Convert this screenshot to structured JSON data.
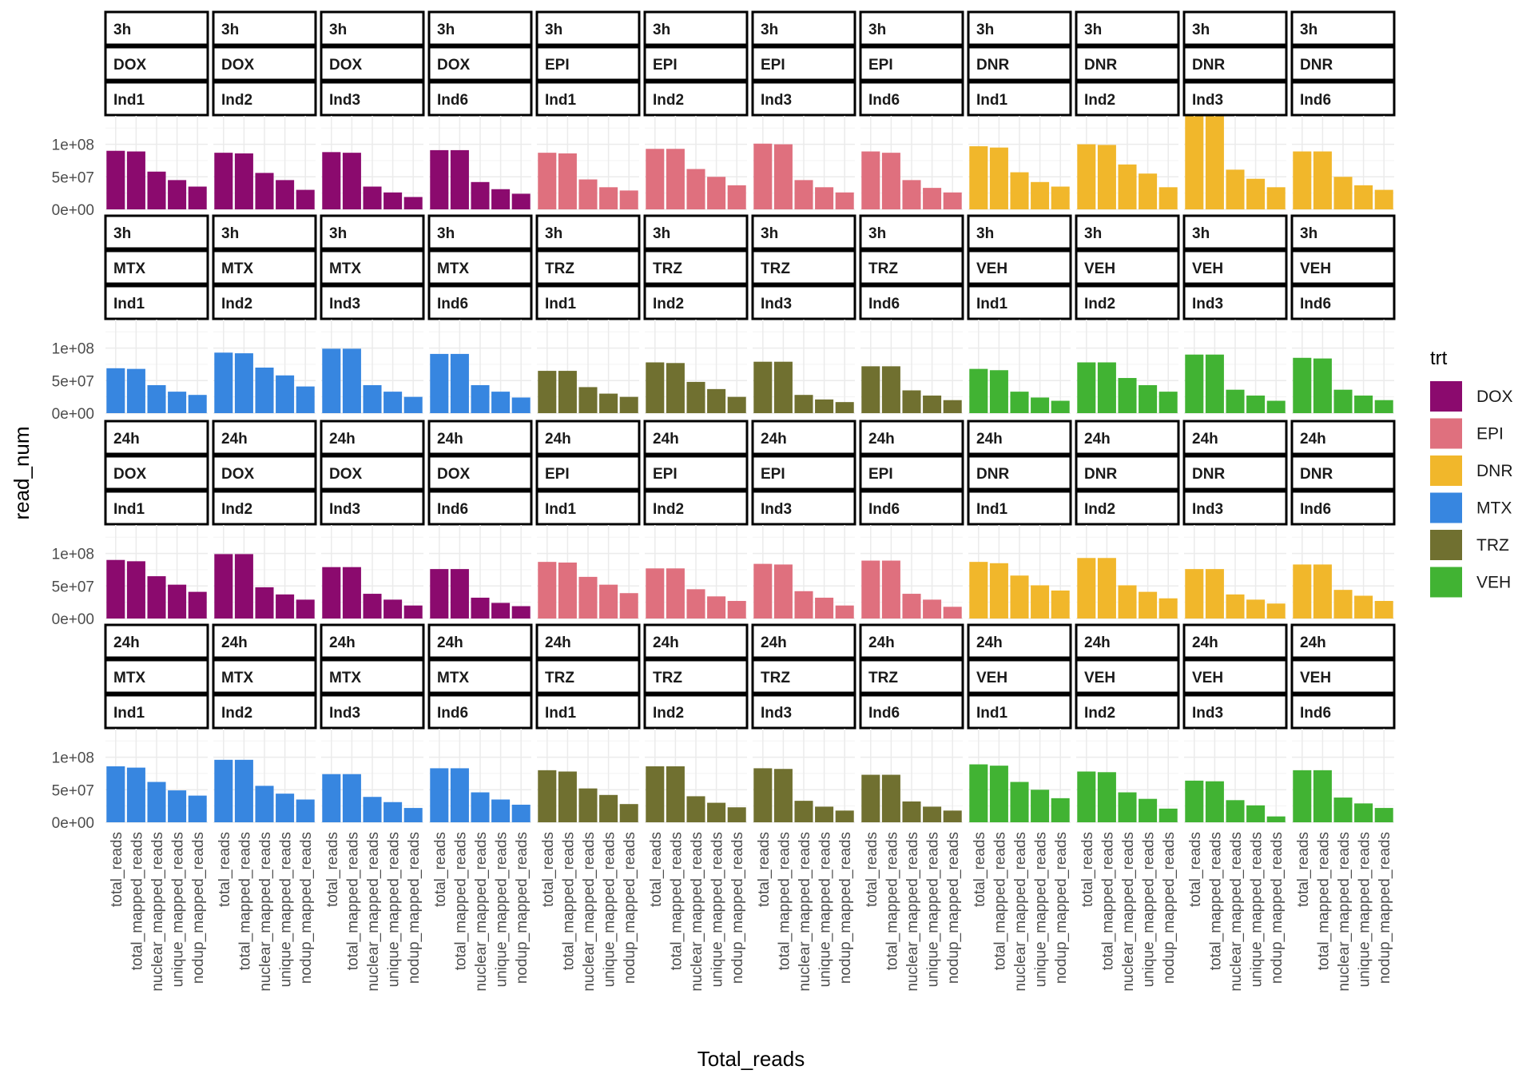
{
  "chart_data": {
    "type": "bar",
    "facet_layout": "time ~ trt ~ ind (faceted bar grid, 4 panel rows x 12 panel columns)",
    "xlabel": "Total_reads",
    "ylabel": "read_num",
    "y_ticks": [
      "0e+00",
      "5e+07",
      "1e+08"
    ],
    "ylim": [
      0,
      140000000
    ],
    "categories": [
      "total_reads",
      "total_mapped_reads",
      "nuclear_mapped_reads",
      "unique_mapped_reads",
      "nodup_mapped_reads"
    ],
    "legend": {
      "title": "trt",
      "position": "right",
      "items": [
        {
          "label": "DOX",
          "color": "#8B0A6E"
        },
        {
          "label": "EPI",
          "color": "#DF707E"
        },
        {
          "label": "DNR",
          "color": "#F1B72B"
        },
        {
          "label": "MTX",
          "color": "#3786E0"
        },
        {
          "label": "TRZ",
          "color": "#707030"
        },
        {
          "label": "VEH",
          "color": "#41B333"
        }
      ]
    },
    "panel_rows": [
      {
        "time": "3h",
        "panels": [
          {
            "time": "3h",
            "trt": "DOX",
            "ind": "Ind1",
            "values": [
              90000000,
              89000000,
              58000000,
              45000000,
              35000000
            ]
          },
          {
            "time": "3h",
            "trt": "DOX",
            "ind": "Ind2",
            "values": [
              87000000,
              86000000,
              56000000,
              45000000,
              30000000
            ]
          },
          {
            "time": "3h",
            "trt": "DOX",
            "ind": "Ind3",
            "values": [
              88000000,
              87000000,
              35000000,
              26000000,
              19000000
            ]
          },
          {
            "time": "3h",
            "trt": "DOX",
            "ind": "Ind6",
            "values": [
              91000000,
              91000000,
              42000000,
              31000000,
              24000000
            ]
          },
          {
            "time": "3h",
            "trt": "EPI",
            "ind": "Ind1",
            "values": [
              87000000,
              86000000,
              46000000,
              34000000,
              29000000
            ]
          },
          {
            "time": "3h",
            "trt": "EPI",
            "ind": "Ind2",
            "values": [
              93000000,
              93000000,
              62000000,
              50000000,
              37000000
            ]
          },
          {
            "time": "3h",
            "trt": "EPI",
            "ind": "Ind3",
            "values": [
              101000000,
              100000000,
              45000000,
              34000000,
              26000000
            ]
          },
          {
            "time": "3h",
            "trt": "EPI",
            "ind": "Ind6",
            "values": [
              89000000,
              87000000,
              45000000,
              33000000,
              26000000
            ]
          },
          {
            "time": "3h",
            "trt": "DNR",
            "ind": "Ind1",
            "values": [
              97000000,
              95000000,
              57000000,
              42000000,
              35000000
            ]
          },
          {
            "time": "3h",
            "trt": "DNR",
            "ind": "Ind2",
            "values": [
              100000000,
              99000000,
              69000000,
              55000000,
              34000000
            ]
          },
          {
            "time": "3h",
            "trt": "DNR",
            "ind": "Ind3",
            "values": [
              143000000,
              143000000,
              61000000,
              47000000,
              34000000
            ]
          },
          {
            "time": "3h",
            "trt": "DNR",
            "ind": "Ind6",
            "values": [
              89000000,
              89000000,
              50000000,
              37000000,
              30000000
            ]
          }
        ]
      },
      {
        "time": "3h",
        "panels": [
          {
            "time": "3h",
            "trt": "MTX",
            "ind": "Ind1",
            "values": [
              69000000,
              68000000,
              43000000,
              33000000,
              28000000
            ]
          },
          {
            "time": "3h",
            "trt": "MTX",
            "ind": "Ind2",
            "values": [
              93000000,
              92000000,
              70000000,
              58000000,
              41000000
            ]
          },
          {
            "time": "3h",
            "trt": "MTX",
            "ind": "Ind3",
            "values": [
              99000000,
              99000000,
              43000000,
              33000000,
              25000000
            ]
          },
          {
            "time": "3h",
            "trt": "MTX",
            "ind": "Ind6",
            "values": [
              91000000,
              91000000,
              43000000,
              33000000,
              24000000
            ]
          },
          {
            "time": "3h",
            "trt": "TRZ",
            "ind": "Ind1",
            "values": [
              65000000,
              65000000,
              40000000,
              30000000,
              25000000
            ]
          },
          {
            "time": "3h",
            "trt": "TRZ",
            "ind": "Ind2",
            "values": [
              78000000,
              77000000,
              48000000,
              37000000,
              25000000
            ]
          },
          {
            "time": "3h",
            "trt": "TRZ",
            "ind": "Ind3",
            "values": [
              79000000,
              79000000,
              28000000,
              21000000,
              17000000
            ]
          },
          {
            "time": "3h",
            "trt": "TRZ",
            "ind": "Ind6",
            "values": [
              72000000,
              72000000,
              35000000,
              27000000,
              20000000
            ]
          },
          {
            "time": "3h",
            "trt": "VEH",
            "ind": "Ind1",
            "values": [
              68000000,
              66000000,
              33000000,
              24000000,
              19000000
            ]
          },
          {
            "time": "3h",
            "trt": "VEH",
            "ind": "Ind2",
            "values": [
              78000000,
              78000000,
              54000000,
              43000000,
              33000000
            ]
          },
          {
            "time": "3h",
            "trt": "VEH",
            "ind": "Ind3",
            "values": [
              90000000,
              90000000,
              36000000,
              27000000,
              19000000
            ]
          },
          {
            "time": "3h",
            "trt": "VEH",
            "ind": "Ind6",
            "values": [
              85000000,
              84000000,
              36000000,
              27000000,
              20000000
            ]
          }
        ]
      },
      {
        "time": "24h",
        "panels": [
          {
            "time": "24h",
            "trt": "DOX",
            "ind": "Ind1",
            "values": [
              90000000,
              88000000,
              65000000,
              52000000,
              41000000
            ]
          },
          {
            "time": "24h",
            "trt": "DOX",
            "ind": "Ind2",
            "values": [
              99000000,
              99000000,
              48000000,
              37000000,
              29000000
            ]
          },
          {
            "time": "24h",
            "trt": "DOX",
            "ind": "Ind3",
            "values": [
              79000000,
              79000000,
              38000000,
              29000000,
              20000000
            ]
          },
          {
            "time": "24h",
            "trt": "DOX",
            "ind": "Ind6",
            "values": [
              76000000,
              76000000,
              32000000,
              24000000,
              19000000
            ]
          },
          {
            "time": "24h",
            "trt": "EPI",
            "ind": "Ind1",
            "values": [
              87000000,
              86000000,
              64000000,
              52000000,
              39000000
            ]
          },
          {
            "time": "24h",
            "trt": "EPI",
            "ind": "Ind2",
            "values": [
              77000000,
              77000000,
              45000000,
              34000000,
              27000000
            ]
          },
          {
            "time": "24h",
            "trt": "EPI",
            "ind": "Ind3",
            "values": [
              84000000,
              83000000,
              42000000,
              32000000,
              20000000
            ]
          },
          {
            "time": "24h",
            "trt": "EPI",
            "ind": "Ind6",
            "values": [
              89000000,
              89000000,
              38000000,
              29000000,
              18000000
            ]
          },
          {
            "time": "24h",
            "trt": "DNR",
            "ind": "Ind1",
            "values": [
              87000000,
              85000000,
              66000000,
              51000000,
              43000000
            ]
          },
          {
            "time": "24h",
            "trt": "DNR",
            "ind": "Ind2",
            "values": [
              93000000,
              93000000,
              51000000,
              41000000,
              31000000
            ]
          },
          {
            "time": "24h",
            "trt": "DNR",
            "ind": "Ind3",
            "values": [
              76000000,
              76000000,
              37000000,
              29000000,
              23000000
            ]
          },
          {
            "time": "24h",
            "trt": "DNR",
            "ind": "Ind6",
            "values": [
              83000000,
              83000000,
              44000000,
              35000000,
              27000000
            ]
          }
        ]
      },
      {
        "time": "24h",
        "panels": [
          {
            "time": "24h",
            "trt": "MTX",
            "ind": "Ind1",
            "values": [
              86000000,
              84000000,
              62000000,
              49000000,
              41000000
            ]
          },
          {
            "time": "24h",
            "trt": "MTX",
            "ind": "Ind2",
            "values": [
              96000000,
              96000000,
              56000000,
              44000000,
              35000000
            ]
          },
          {
            "time": "24h",
            "trt": "MTX",
            "ind": "Ind3",
            "values": [
              74000000,
              74000000,
              39000000,
              31000000,
              22000000
            ]
          },
          {
            "time": "24h",
            "trt": "MTX",
            "ind": "Ind6",
            "values": [
              83000000,
              83000000,
              46000000,
              35000000,
              27000000
            ]
          },
          {
            "time": "24h",
            "trt": "TRZ",
            "ind": "Ind1",
            "values": [
              80000000,
              78000000,
              52000000,
              42000000,
              28000000
            ]
          },
          {
            "time": "24h",
            "trt": "TRZ",
            "ind": "Ind2",
            "values": [
              86000000,
              86000000,
              40000000,
              30000000,
              23000000
            ]
          },
          {
            "time": "24h",
            "trt": "TRZ",
            "ind": "Ind3",
            "values": [
              83000000,
              82000000,
              33000000,
              24000000,
              18000000
            ]
          },
          {
            "time": "24h",
            "trt": "TRZ",
            "ind": "Ind6",
            "values": [
              73000000,
              73000000,
              32000000,
              24000000,
              18000000
            ]
          },
          {
            "time": "24h",
            "trt": "VEH",
            "ind": "Ind1",
            "values": [
              89000000,
              87000000,
              62000000,
              50000000,
              37000000
            ]
          },
          {
            "time": "24h",
            "trt": "VEH",
            "ind": "Ind2",
            "values": [
              78000000,
              77000000,
              46000000,
              36000000,
              21000000
            ]
          },
          {
            "time": "24h",
            "trt": "VEH",
            "ind": "Ind3",
            "values": [
              64000000,
              63000000,
              34000000,
              26000000,
              9000000
            ]
          },
          {
            "time": "24h",
            "trt": "VEH",
            "ind": "Ind6",
            "values": [
              80000000,
              80000000,
              38000000,
              29000000,
              22000000
            ]
          }
        ]
      }
    ]
  }
}
